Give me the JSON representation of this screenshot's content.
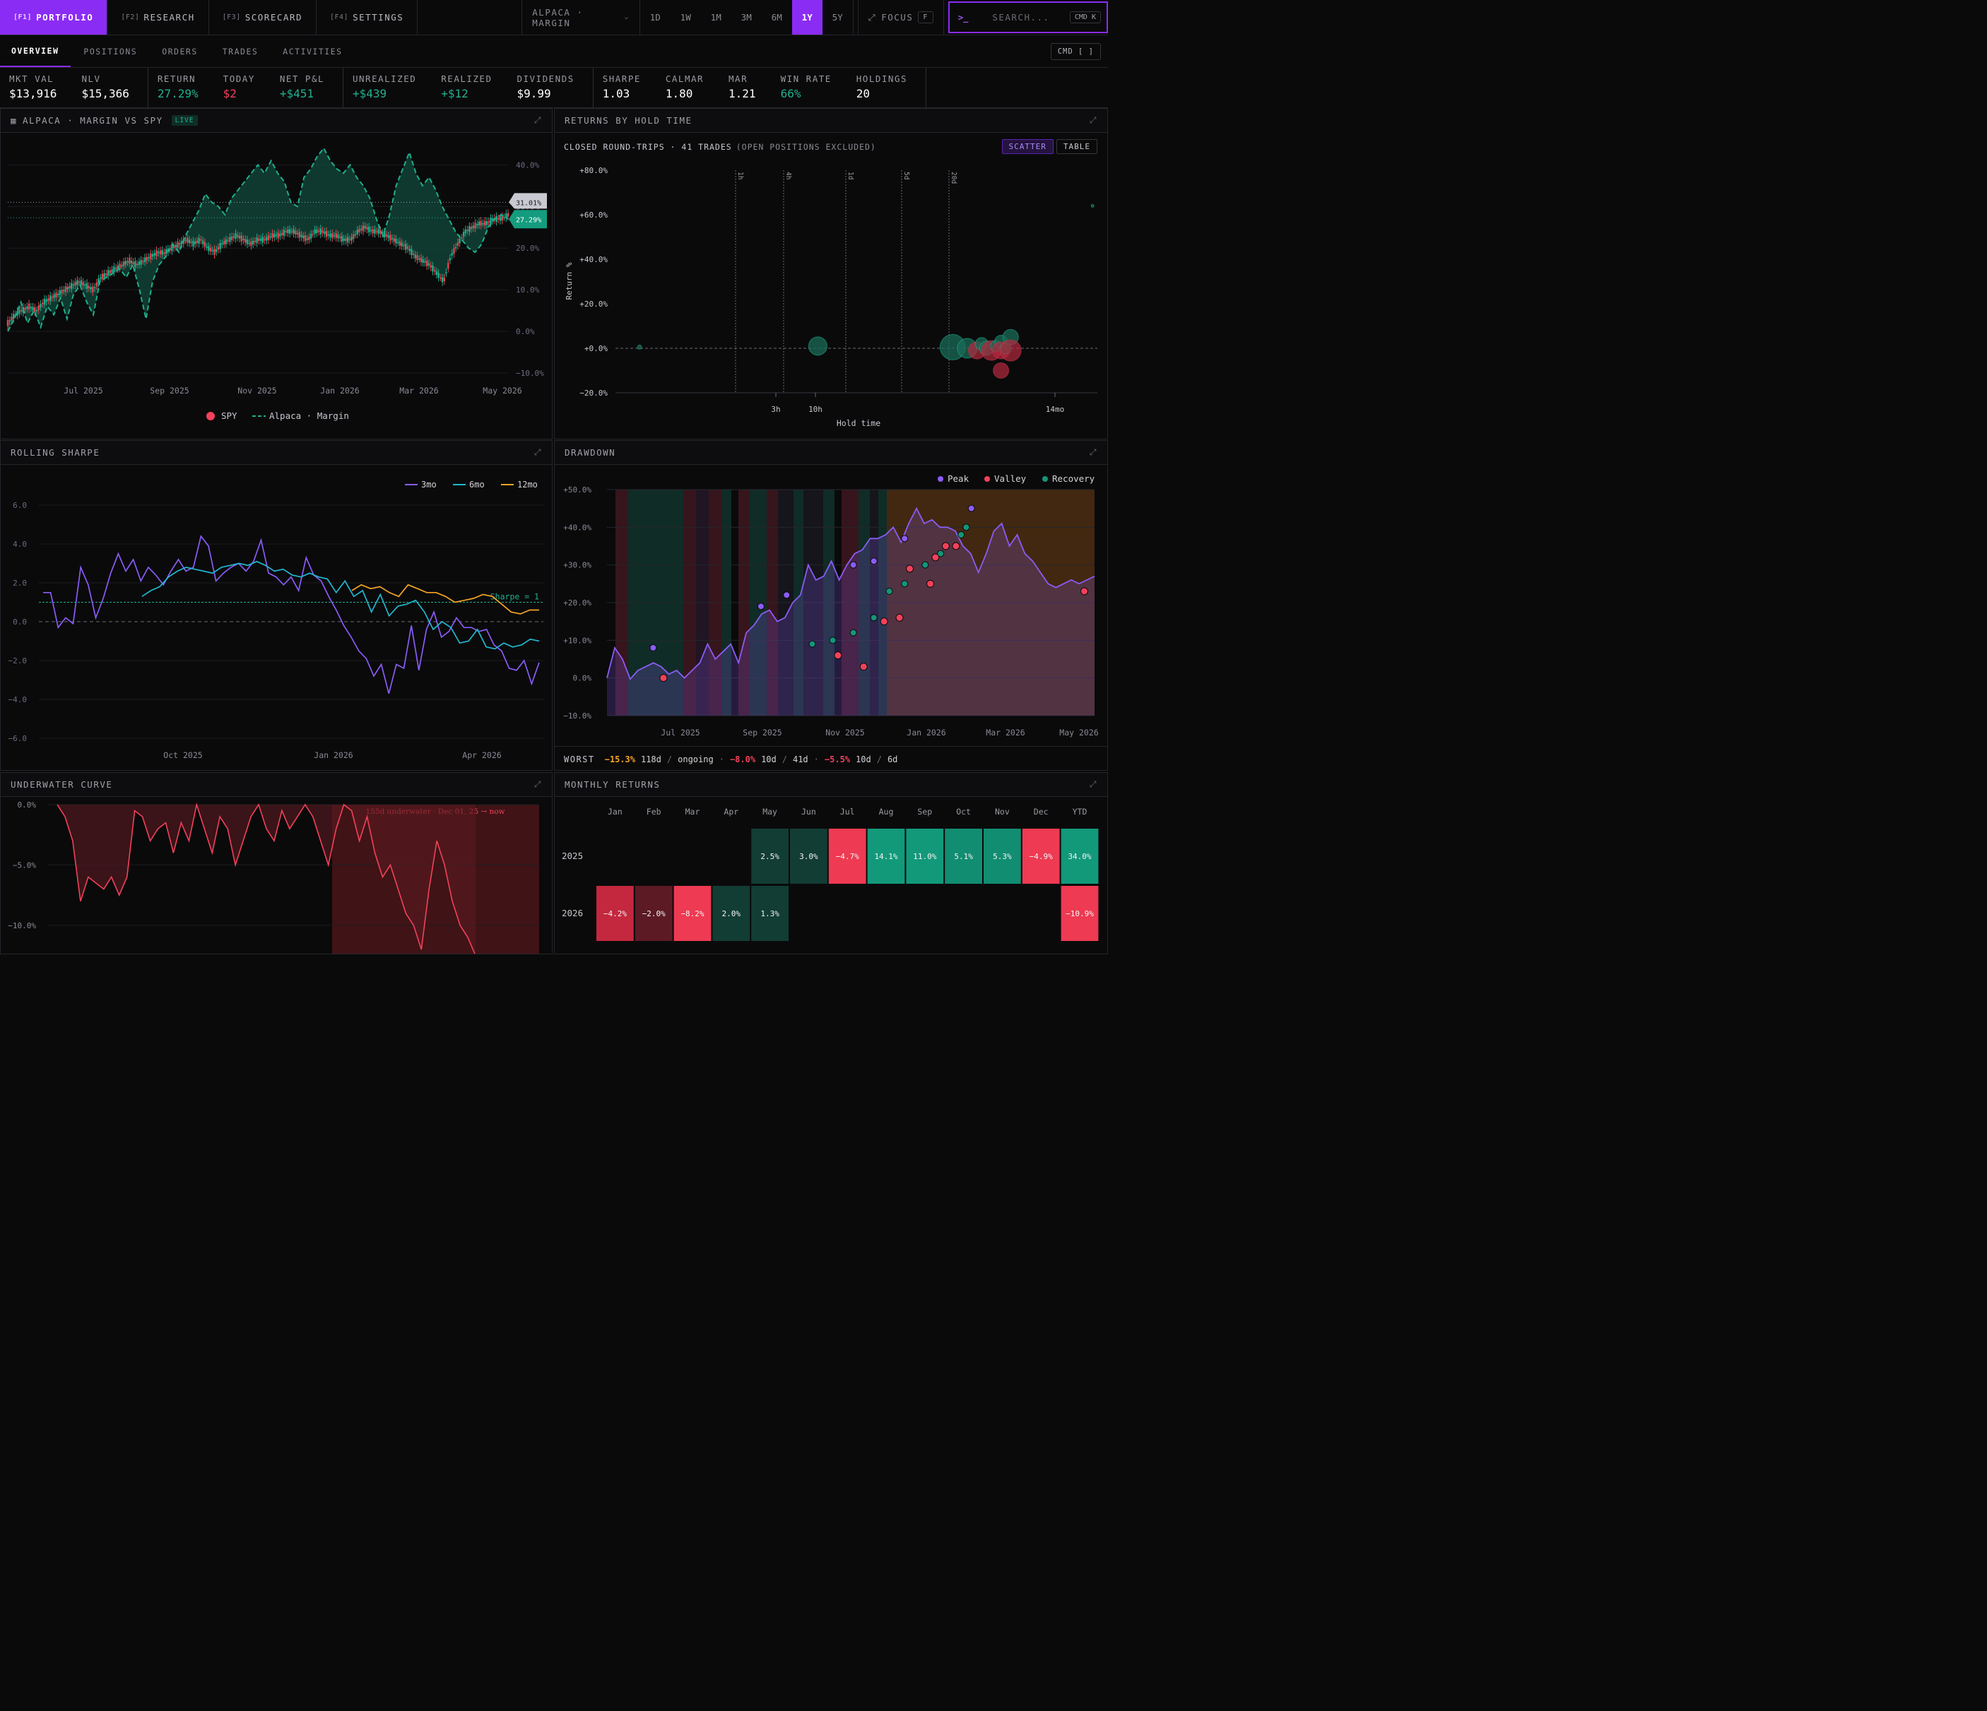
{
  "topbar": {
    "tabs": [
      {
        "key": "[F1]",
        "label": "PORTFOLIO"
      },
      {
        "key": "[F2]",
        "label": "RESEARCH"
      },
      {
        "key": "[F3]",
        "label": "SCORECARD"
      },
      {
        "key": "[F4]",
        "label": "SETTINGS"
      }
    ],
    "account": "ALPACA · MARGIN",
    "ranges": [
      "1D",
      "1W",
      "1M",
      "3M",
      "6M",
      "1Y",
      "5Y"
    ],
    "active_range": "1Y",
    "focus_label": "FOCUS",
    "focus_key": "F",
    "search_prompt": ">_",
    "search_placeholder": "SEARCH...",
    "search_shortcut": "CMD K"
  },
  "subnav": {
    "tabs": [
      "OVERVIEW",
      "POSITIONS",
      "ORDERS",
      "TRADES",
      "ACTIVITIES"
    ],
    "shortcut": "CMD [ ]"
  },
  "metrics": [
    {
      "label": "MKT VAL",
      "value": "$13,916",
      "tone": "neutral"
    },
    {
      "label": "NLV",
      "value": "$15,366",
      "tone": "neutral"
    },
    {
      "label": "RETURN",
      "value": "27.29%",
      "tone": "pos"
    },
    {
      "label": "TODAY",
      "value": "$2",
      "tone": "neg"
    },
    {
      "label": "NET P&L",
      "value": "+$451",
      "tone": "pos"
    },
    {
      "label": "UNREALIZED",
      "value": "+$439",
      "tone": "pos"
    },
    {
      "label": "REALIZED",
      "value": "+$12",
      "tone": "pos"
    },
    {
      "label": "DIVIDENDS",
      "value": "$9.99",
      "tone": "neutral"
    },
    {
      "label": "SHARPE",
      "value": "1.03",
      "tone": "neutral"
    },
    {
      "label": "CALMAR",
      "value": "1.80",
      "tone": "neutral"
    },
    {
      "label": "MAR",
      "value": "1.21",
      "tone": "neutral"
    },
    {
      "label": "WIN RATE",
      "value": "66%",
      "tone": "pos"
    },
    {
      "label": "HOLDINGS",
      "value": "20",
      "tone": "neutral"
    }
  ],
  "colors": {
    "accent": "#8b2cf5",
    "positive": "#22b08e",
    "negative": "#f2415a",
    "orange": "#f5a524",
    "cyan": "#22b8cf",
    "purple": "#8b5cf6"
  },
  "panels": {
    "equity": {
      "title": "ALPACA · MARGIN VS SPY",
      "badge": "LIVE",
      "tag_spy": "31.01%",
      "tag_port": "27.29%",
      "legend_spy": "SPY",
      "legend_port": "Alpaca · Margin"
    },
    "hold": {
      "title": "RETURNS BY HOLD TIME",
      "subtitle": "CLOSED ROUND-TRIPS · 41 TRADES",
      "subtitle_note": "(OPEN POSITIONS EXCLUDED)",
      "btn_scatter": "SCATTER",
      "btn_table": "TABLE",
      "ylabel": "Return %",
      "xlabel": "Hold time"
    },
    "sharpe": {
      "title": "ROLLING SHARPE",
      "ref_label": "Sharpe = 1"
    },
    "drawdown": {
      "title": "DRAWDOWN",
      "legend": [
        "Peak",
        "Valley",
        "Recovery"
      ],
      "worst_label": "WORST",
      "worst": [
        {
          "pct": "−15.3%",
          "dur": "118d",
          "rec": "ongoing"
        },
        {
          "pct": "−8.0%",
          "dur": "10d",
          "rec": "41d"
        },
        {
          "pct": "−5.5%",
          "dur": "10d",
          "rec": "6d"
        }
      ]
    },
    "underwater": {
      "title": "UNDERWATER CURVE",
      "annotation": "155d underwater · Dec 01, 25 → now"
    },
    "monthly": {
      "title": "MONTHLY RETURNS"
    }
  },
  "chart_data": [
    {
      "id": "equity",
      "type": "line",
      "title": "ALPACA · MARGIN VS SPY",
      "x_ticks": [
        "Jul 2025",
        "Sep 2025",
        "Nov 2025",
        "Jan 2026",
        "Mar 2026",
        "May 2026"
      ],
      "y_ticks": [
        "40.0%",
        "30.0%",
        "20.0%",
        "10.0%",
        "0.0%",
        "−10.0%"
      ],
      "ylim": [
        -10,
        46
      ],
      "series": [
        {
          "name": "SPY",
          "last": 31.01
        },
        {
          "name": "Alpaca · Margin",
          "last": 27.29
        }
      ],
      "portfolio_path": [
        0,
        3,
        7,
        2,
        5,
        1,
        6,
        4,
        8,
        3,
        9,
        11,
        7,
        4,
        12,
        13,
        14,
        15,
        13,
        16,
        10,
        3,
        12,
        16,
        18,
        21,
        19,
        23,
        26,
        29,
        33,
        31,
        30,
        28,
        32,
        34,
        36,
        38,
        40,
        38,
        41,
        38,
        36,
        31,
        30,
        37,
        39,
        42,
        44,
        41,
        39,
        38,
        40,
        37,
        35,
        32,
        27,
        23,
        28,
        35,
        39,
        43,
        38,
        35,
        37,
        34,
        30,
        27,
        24,
        22,
        20,
        19,
        21,
        25,
        27,
        28,
        27
      ],
      "spy_path": [
        2,
        4,
        5,
        6,
        5,
        7,
        8,
        9,
        10,
        11,
        12,
        11,
        10,
        13,
        14,
        15,
        16,
        17,
        16,
        17,
        18,
        19,
        19,
        20,
        21,
        22,
        21,
        22,
        20,
        19,
        21,
        22,
        23,
        22,
        21,
        22,
        22,
        23,
        23,
        24,
        24,
        23,
        22,
        24,
        24,
        23,
        23,
        22,
        22,
        24,
        25,
        24,
        24,
        23,
        22,
        21,
        20,
        18,
        17,
        16,
        14,
        12,
        18,
        21,
        24,
        25,
        26,
        26,
        27,
        27,
        28
      ]
    },
    {
      "id": "hold",
      "type": "scatter",
      "title": "RETURNS BY HOLD TIME",
      "x_ticks": [
        "3h",
        "10h",
        "14mo"
      ],
      "vlines": [
        "1h",
        "4h",
        "1d",
        "5d",
        "20d"
      ],
      "y_ticks": [
        "+80.0%",
        "+60.0%",
        "+40.0%",
        "+20.0%",
        "+0.0%",
        "−20.0%"
      ],
      "ylim": [
        -20,
        80
      ],
      "points": [
        {
          "x": 0.05,
          "y": 0.5,
          "r": 3
        },
        {
          "x": 0.42,
          "y": 1,
          "r": 13
        },
        {
          "x": 0.7,
          "y": 0.5,
          "r": 18
        },
        {
          "x": 0.73,
          "y": 0,
          "r": 14
        },
        {
          "x": 0.75,
          "y": -1,
          "r": 12
        },
        {
          "x": 0.76,
          "y": 2,
          "r": 9
        },
        {
          "x": 0.77,
          "y": 0,
          "r": 10
        },
        {
          "x": 0.78,
          "y": -1,
          "r": 14
        },
        {
          "x": 0.79,
          "y": 1,
          "r": 8
        },
        {
          "x": 0.8,
          "y": 3,
          "r": 9
        },
        {
          "x": 0.8,
          "y": -1,
          "r": 12
        },
        {
          "x": 0.81,
          "y": 0,
          "r": 8
        },
        {
          "x": 0.82,
          "y": 5,
          "r": 11
        },
        {
          "x": 0.8,
          "y": -10,
          "r": 11
        },
        {
          "x": 0.82,
          "y": -1,
          "r": 15
        },
        {
          "x": 0.99,
          "y": 64,
          "r": 2
        }
      ]
    },
    {
      "id": "sharpe",
      "type": "line",
      "title": "ROLLING SHARPE",
      "x_ticks": [
        "Oct 2025",
        "Jan 2026",
        "Apr 2026"
      ],
      "y_ticks": [
        "6.0",
        "4.0",
        "2.0",
        "0.0",
        "−2.0",
        "−4.0",
        "−6.0"
      ],
      "ylim": [
        -6,
        6
      ],
      "series": [
        {
          "name": "3mo",
          "values": [
            1.5,
            1.5,
            -0.3,
            0.2,
            -0.1,
            2.8,
            1.9,
            0.2,
            1.2,
            2.5,
            3.5,
            2.6,
            3.2,
            2.1,
            2.8,
            2.4,
            1.9,
            2.6,
            3.2,
            2.6,
            2.8,
            4.4,
            3.9,
            2.1,
            2.5,
            2.8,
            3.0,
            2.6,
            3.1,
            4.2,
            2.5,
            2.3,
            1.9,
            2.3,
            1.6,
            3.3,
            2.4,
            2.1,
            1.3,
            0.6,
            -0.2,
            -0.8,
            -1.5,
            -1.9,
            -2.8,
            -2.2,
            -3.7,
            -2.2,
            -2.4,
            -0.2,
            -2.5,
            -0.4,
            0.5,
            -0.8,
            -0.5,
            0.2,
            -0.3,
            -0.3,
            -0.5,
            -0.4,
            -1.2,
            -1.5,
            -2.4,
            -2.5,
            -2.0,
            -3.2,
            -2.1
          ]
        },
        {
          "name": "6mo",
          "values": [
            1.3,
            1.6,
            1.8,
            2.3,
            2.6,
            2.8,
            2.7,
            2.6,
            2.5,
            2.8,
            2.9,
            3.0,
            2.9,
            3.1,
            2.9,
            2.6,
            2.7,
            2.4,
            2.3,
            2.5,
            2.3,
            2.2,
            1.5,
            2.1,
            1.3,
            1.6,
            0.5,
            1.4,
            0.3,
            0.8,
            0.9,
            1.1,
            0.5,
            -0.4,
            0.0,
            -0.3,
            -1.1,
            -1.0,
            -0.4,
            -1.3,
            -1.4,
            -1.1,
            -1.3,
            -1.2,
            -0.9,
            -1.0
          ]
        },
        {
          "name": "12mo",
          "values": [
            1.6,
            1.9,
            1.7,
            1.8,
            1.5,
            1.3,
            1.9,
            1.7,
            1.5,
            1.5,
            1.3,
            1.0,
            1.1,
            1.2,
            1.4,
            1.3,
            0.9,
            0.5,
            0.4,
            0.6,
            0.6
          ]
        }
      ],
      "ref_line": 1
    },
    {
      "id": "drawdown",
      "type": "line",
      "title": "DRAWDOWN",
      "x_ticks": [
        "Jul 2025",
        "Sep 2025",
        "Nov 2025",
        "Jan 2026",
        "Mar 2026",
        "May 2026"
      ],
      "y_ticks": [
        "+50.0%",
        "+40.0%",
        "+30.0%",
        "+20.0%",
        "+10.0%",
        "0.0%",
        "−10.0%"
      ],
      "ylim": [
        -10,
        50
      ],
      "series": [
        {
          "name": "Equity",
          "values": [
            0,
            8,
            5,
            -0.3,
            2,
            3,
            4,
            3,
            1,
            2,
            0,
            2,
            4,
            9,
            5,
            7,
            9,
            4,
            12,
            14,
            17,
            18,
            15,
            16,
            20,
            22,
            30,
            26,
            27,
            31,
            26,
            30,
            33,
            34,
            37,
            37,
            38,
            40,
            36,
            41,
            45,
            41,
            42,
            40,
            40,
            39,
            35,
            33,
            28,
            33,
            39,
            41,
            35,
            38,
            33,
            31,
            28,
            25,
            24,
            25,
            26,
            25,
            26,
            27
          ]
        }
      ],
      "markers": {
        "peaks": [
          [
            9,
            8
          ],
          [
            30,
            19
          ],
          [
            35,
            22
          ],
          [
            48,
            30
          ],
          [
            52,
            31
          ],
          [
            58,
            37
          ],
          [
            71,
            45
          ]
        ],
        "valleys": [
          [
            11,
            0
          ],
          [
            45,
            6
          ],
          [
            50,
            3
          ],
          [
            54,
            15
          ],
          [
            57,
            16
          ],
          [
            59,
            29
          ],
          [
            63,
            25
          ],
          [
            64,
            32
          ],
          [
            66,
            35
          ],
          [
            68,
            35
          ],
          [
            93,
            23
          ]
        ],
        "recoveries": [
          [
            40,
            9
          ],
          [
            44,
            10
          ],
          [
            48,
            12
          ],
          [
            52,
            16
          ],
          [
            55,
            23
          ],
          [
            58,
            25
          ],
          [
            62,
            30
          ],
          [
            65,
            33
          ],
          [
            69,
            38
          ],
          [
            70,
            40
          ]
        ]
      }
    },
    {
      "id": "underwater",
      "type": "area",
      "title": "UNDERWATER CURVE",
      "y_ticks": [
        "0.0%",
        "−5.0%",
        "−10.0%"
      ],
      "ylim": [
        -12,
        0
      ],
      "values": [
        0,
        -1,
        -3,
        -8,
        -6,
        -6.5,
        -7,
        -6,
        -7.5,
        -6,
        -0.5,
        -1,
        -3,
        -2,
        -1.5,
        -4,
        -1.5,
        -3,
        0,
        -2,
        -4,
        -1,
        -2,
        -5,
        -3,
        -1,
        0,
        -2,
        -3,
        -0.5,
        -2,
        -1,
        0,
        -1,
        -3,
        -5,
        -2,
        0,
        -0.5,
        -3,
        -1,
        -4,
        -6,
        -5,
        -7,
        -9,
        -10,
        -12,
        -7,
        -3,
        -5,
        -8,
        -10,
        -11,
        -12.5
      ]
    },
    {
      "id": "monthly",
      "type": "heatmap",
      "title": "MONTHLY RETURNS",
      "columns": [
        "Jan",
        "Feb",
        "Mar",
        "Apr",
        "May",
        "Jun",
        "Jul",
        "Aug",
        "Sep",
        "Oct",
        "Nov",
        "Dec",
        "YTD"
      ],
      "rows": [
        {
          "year": "2025",
          "cells": [
            null,
            null,
            null,
            null,
            "2.5%",
            "3.0%",
            "−4.7%",
            "14.1%",
            "11.0%",
            "5.1%",
            "5.3%",
            "−4.9%",
            "34.0%"
          ],
          "values": [
            null,
            null,
            null,
            null,
            2.5,
            3.0,
            -4.7,
            14.1,
            11.0,
            5.1,
            5.3,
            -4.9,
            34.0
          ]
        },
        {
          "year": "2026",
          "cells": [
            "−4.2%",
            "−2.0%",
            "−8.2%",
            "2.0%",
            "1.3%",
            null,
            null,
            null,
            null,
            null,
            null,
            null,
            "−10.9%"
          ],
          "values": [
            -4.2,
            -2.0,
            -8.2,
            2.0,
            1.3,
            null,
            null,
            null,
            null,
            null,
            null,
            null,
            -10.9
          ]
        }
      ]
    }
  ]
}
